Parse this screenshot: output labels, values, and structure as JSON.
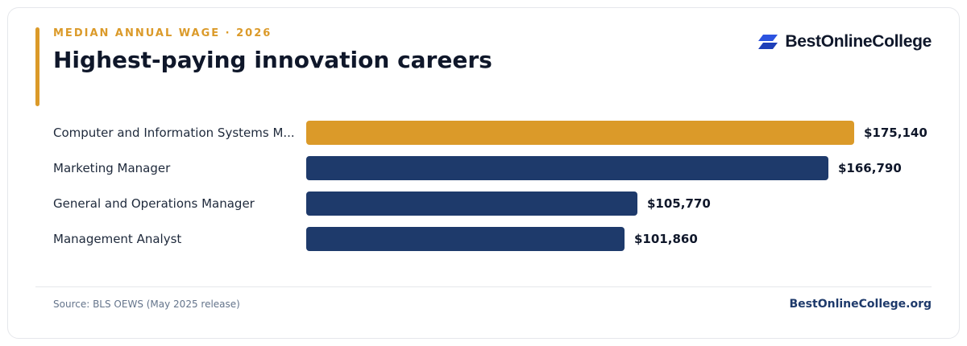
{
  "header": {
    "eyebrow": "MEDIAN ANNUAL WAGE · 2026",
    "title": "Highest-paying innovation careers"
  },
  "brand": {
    "name": "BestOnlineCollege",
    "icon": "parallelogram-logo-icon"
  },
  "colors": {
    "highlight": "#db9a29",
    "bar": "#1e3a6b",
    "text": "#0f172a"
  },
  "chart_data": {
    "type": "bar",
    "orientation": "horizontal",
    "categories": [
      "Computer and Information Systems M...",
      "Marketing Manager",
      "General and Operations Manager",
      "Management Analyst"
    ],
    "values": [
      175140,
      166790,
      105770,
      101860
    ],
    "value_labels": [
      "$175,140",
      "$166,790",
      "$105,770",
      "$101,860"
    ],
    "highlight_index": 0,
    "xlim": [
      0,
      175140
    ],
    "grid": false,
    "legend": "none"
  },
  "footer": {
    "source": "Source: BLS OEWS (May 2025 release)",
    "site": "BestOnlineCollege.org"
  }
}
